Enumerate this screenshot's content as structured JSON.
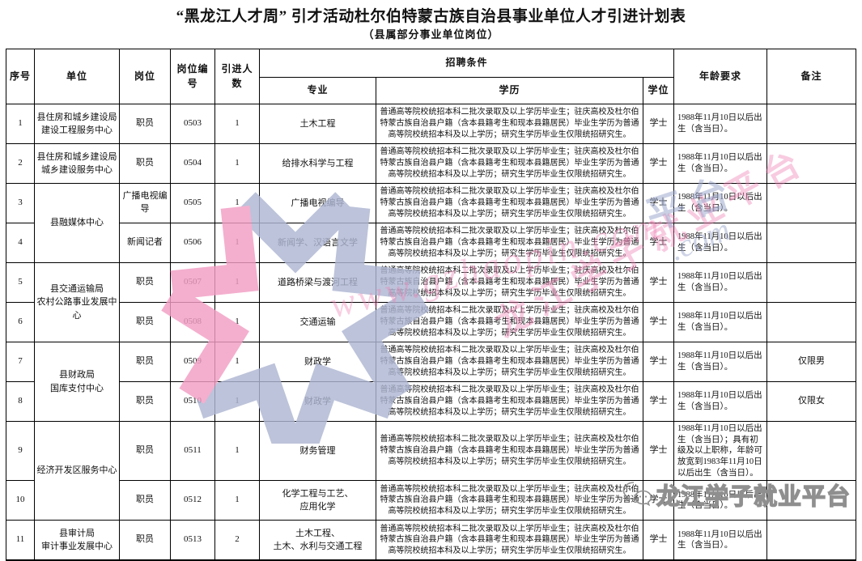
{
  "title": "“黑龙江人才周” 引才活动杜尔伯特蒙古族自治县事业单位人才引进计划表",
  "subtitle": "（县属部分事业单位岗位）",
  "table": {
    "headers": {
      "no": "序号",
      "unit": "单位",
      "post": "岗位",
      "code": "岗位编号",
      "count": "引进人数",
      "recruit": "招聘条件",
      "major": "专业",
      "education": "学历",
      "degree": "学位",
      "age": "年龄要求",
      "note": "备注"
    },
    "rows": [
      {
        "no": "1",
        "unit": {
          "rowspan": 1,
          "lines": [
            "县住房和城乡建设局",
            "建设工程服务中心"
          ]
        },
        "post": "职员",
        "code": "0503",
        "count": "1",
        "major": [
          "土木工程"
        ],
        "education": "普通高等院校统招本科二批次录取及以上学历毕业生；驻庆高校及杜尔伯特蒙古族自治县户籍（含本县籍考生和现本县籍居民）毕业生学历为普通高等院校统招本科及以上学历；研究生学历毕业生仅限统招研究生。",
        "degree": "学士",
        "age": "1988年11月10日以后出生（含当日）。",
        "note": ""
      },
      {
        "no": "2",
        "unit": {
          "rowspan": 1,
          "lines": [
            "县住房和城乡建设局",
            "城乡建设服务中心"
          ]
        },
        "post": "职员",
        "code": "0504",
        "count": "1",
        "major": [
          "给排水科学与工程"
        ],
        "education": "普通高等院校统招本科二批次录取及以上学历毕业生；驻庆高校及杜尔伯特蒙古族自治县户籍（含本县籍考生和现本县籍居民）毕业生学历为普通高等院校统招本科及以上学历；研究生学历毕业生仅限统招研究生。",
        "degree": "学士",
        "age": "1988年11月10日以后出生（含当日）。",
        "note": ""
      },
      {
        "no": "3",
        "unit": {
          "rowspan": 2,
          "lines": [
            "县融媒体中心"
          ]
        },
        "post": "广播电视编导",
        "code": "0505",
        "count": "1",
        "major": [
          "广播电视编导"
        ],
        "education": "普通高等院校统招本科二批次录取及以上学历毕业生；驻庆高校及杜尔伯特蒙古族自治县户籍（含本县籍考生和现本县籍居民）毕业生学历为普通高等院校统招本科及以上学历；研究生学历毕业生仅限统招研究生。",
        "degree": "学士",
        "age": "1988年11月10日以后出生（含当日）。",
        "note": ""
      },
      {
        "no": "4",
        "unit": null,
        "post": "新闻记者",
        "code": "0506",
        "count": "1",
        "major": [
          "新闻学、汉语言文学"
        ],
        "education": "普通高等院校统招本科二批次录取及以上学历毕业生；驻庆高校及杜尔伯特蒙古族自治县户籍（含本县籍考生和现本县籍居民）毕业生学历为普通高等院校统招本科及以上学历；研究生学历毕业生仅限统招研究生。",
        "degree": "学士",
        "age": "1988年11月10日以后出生（含当日）。",
        "note": ""
      },
      {
        "no": "5",
        "unit": {
          "rowspan": 2,
          "lines": [
            "县交通运输局",
            "农村公路事业发展中心"
          ]
        },
        "post": "职员",
        "code": "0507",
        "count": "1",
        "major": [
          "道路桥梁与渡河工程"
        ],
        "education": "普通高等院校统招本科二批次录取及以上学历毕业生；驻庆高校及杜尔伯特蒙古族自治县户籍（含本县籍考生和现本县籍居民）毕业生学历为普通高等院校统招本科及以上学历；研究生学历毕业生仅限统招研究生。",
        "degree": "学士",
        "age": "1988年11月10日以后出生（含当日）。",
        "note": ""
      },
      {
        "no": "6",
        "unit": null,
        "post": "职员",
        "code": "0508",
        "count": "1",
        "major": [
          "交通运输"
        ],
        "education": "普通高等院校统招本科二批次录取及以上学历毕业生；驻庆高校及杜尔伯特蒙古族自治县户籍（含本县籍考生和现本县籍居民）毕业生学历为普通高等院校统招本科及以上学历；研究生学历毕业生仅限统招研究生。",
        "degree": "学士",
        "age": "1988年11月10日以后出生（含当日）。",
        "note": ""
      },
      {
        "no": "7",
        "unit": {
          "rowspan": 2,
          "lines": [
            "县财政局",
            "国库支付中心"
          ]
        },
        "post": "职员",
        "code": "0509",
        "count": "1",
        "major": [
          "财政学"
        ],
        "education": "普通高等院校统招本科二批次录取及以上学历毕业生；驻庆高校及杜尔伯特蒙古族自治县户籍（含本县籍考生和现本县籍居民）毕业生学历为普通高等院校统招本科及以上学历；研究生学历毕业生仅限统招研究生。",
        "degree": "学士",
        "age": "1988年11月10日以后出生（含当日）。",
        "note": "仅限男"
      },
      {
        "no": "8",
        "unit": null,
        "post": "职员",
        "code": "0510",
        "count": "1",
        "major": [
          "财政学"
        ],
        "education": "普通高等院校统招本科二批次录取及以上学历毕业生；驻庆高校及杜尔伯特蒙古族自治县户籍（含本县籍考生和现本县籍居民）毕业生学历为普通高等院校统招本科及以上学历；研究生学历毕业生仅限统招研究生。",
        "degree": "学士",
        "age": "1988年11月10日以后出生（含当日）。",
        "note": "仅限女"
      },
      {
        "no": "9",
        "unit": {
          "rowspan": 2,
          "lines": [
            "经济开发区服务中心"
          ]
        },
        "post": "职员",
        "code": "0511",
        "count": "1",
        "major": [
          "财务管理"
        ],
        "education": "普通高等院校统招本科二批次录取及以上学历毕业生；驻庆高校及杜尔伯特蒙古族自治县户籍（含本县籍考生和现本县籍居民）毕业生学历为普通高等院校统招本科及以上学历；研究生学历毕业生仅限统招研究生。",
        "degree": "学士",
        "age": "1988年11月10日以后出生（含当日）；具有初级及以上职称，年龄可放宽到1983年11月10日以后出生（含当日）。",
        "note": ""
      },
      {
        "no": "10",
        "unit": null,
        "post": "职员",
        "code": "0512",
        "count": "1",
        "major": [
          "化学工程与工艺、",
          "应用化学"
        ],
        "education": "普通高等院校统招本科二批次录取及以上学历毕业生；驻庆高校及杜尔伯特蒙古族自治县户籍（含本县籍考生和现本县籍居民）毕业生学历为普通高等院校统招本科及以上学历；研究生学历毕业生仅限统招研究生。",
        "degree": "学士",
        "age": "1988年11月10日以后出生（含当日）。",
        "note": ""
      },
      {
        "no": "11",
        "unit": {
          "rowspan": 1,
          "lines": [
            "县审计局",
            "审计事业发展中心"
          ]
        },
        "post": "职员",
        "code": "0513",
        "count": "2",
        "major": [
          "土木工程、",
          "土木、水利与交通工程"
        ],
        "education": "普通高等院校统招本科二批次录取及以上学历毕业生；驻庆高校及杜尔伯特蒙古族自治县户籍（含本县籍考生和现本县籍居民）毕业生学历为普通高等院校统招本科及以上学历；研究生学历毕业生仅限统招研究生。",
        "degree": "学士",
        "age": "1988年11月10日以后出生（含当日）。",
        "note": ""
      }
    ]
  },
  "watermark": {
    "brand_cn": "龙江学子就业平台",
    "brand_url": "www.gzhaopin.com",
    "overlay_cn_fragment": "平台",
    "overlay_url_fragment": ".com",
    "stamp_text": "龙江学子就业平台",
    "pink": "#ee82b4",
    "blue": "#9eaacd",
    "logo_pink": "#f29ec4",
    "logo_blue": "#aeb6d2"
  }
}
